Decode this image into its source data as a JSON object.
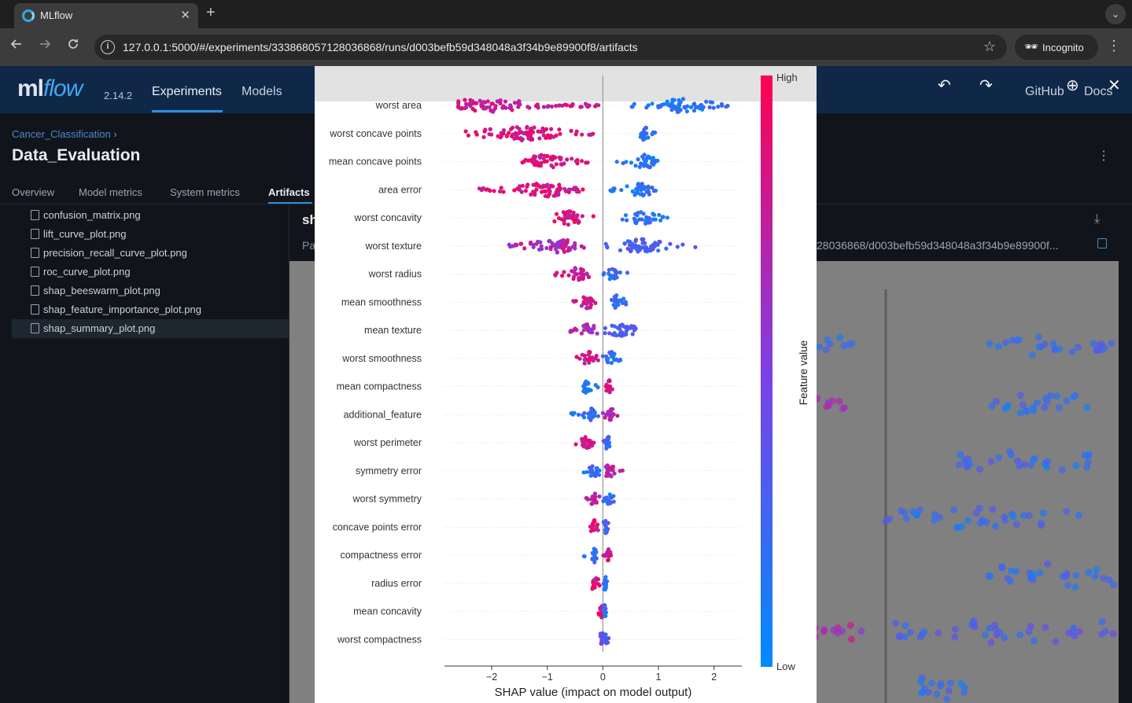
{
  "browser": {
    "tab_title": "MLflow",
    "tab_close": "✕",
    "new_tab": "+",
    "tab_menu": "⌄",
    "url": "127.0.0.1:5000/#/experiments/333868057128036868/runs/d003befb59d348048a3f34b9e89900f8/artifacts",
    "incognito_label": "Incognito",
    "icons": {
      "back": "arrow-left-icon",
      "forward": "arrow-right-icon",
      "reload": "reload-icon",
      "info": "info-icon",
      "star": "star-icon",
      "incognito": "incognito-icon",
      "menu": "kebab-menu-icon"
    }
  },
  "app": {
    "logo_ml": "ml",
    "logo_flow": "flow",
    "version": "2.14.2",
    "nav": [
      "Experiments",
      "Models"
    ],
    "header_right": [
      "GitHub",
      "Docs"
    ],
    "breadcrumb": "Cancer_Classification",
    "breadcrumb_sep": "›",
    "run_title": "Data_Evaluation",
    "tabs": [
      "Overview",
      "Model metrics",
      "System metrics",
      "Artifacts"
    ],
    "files": [
      "confusion_matrix.png",
      "lift_curve_plot.png",
      "precision_recall_curve_plot.png",
      "roc_curve_plot.png",
      "shap_beeswarm_plot.png",
      "shap_feature_importance_plot.png",
      "shap_summary_plot.png"
    ],
    "selected_file": "shap_summary_plot.png",
    "preview_title_fragment": "sh",
    "path_label_fragment": "Pa",
    "path_value_fragment": "28036868/d003befb59d348048a3f34b9e89900f...",
    "viewer_labels": {
      "undo": "↶",
      "redo": "↷",
      "zoom_in": "⊕",
      "close": "✕"
    },
    "accent": "#2a8fe0",
    "header_bg": "#0f2848"
  },
  "chart_data": {
    "type": "scatter",
    "subtype": "shap-beeswarm",
    "xlabel": "SHAP value (impact on model output)",
    "xticks": [
      "−2",
      "−1",
      "0",
      "1",
      "2"
    ],
    "xlim": [
      -2.85,
      2.5
    ],
    "colorbar": {
      "label": "Feature value",
      "high": "High",
      "low": "Low",
      "colors": [
        "#008bfb",
        "#ff0052"
      ]
    },
    "features": [
      "worst area",
      "worst concave points",
      "mean concave points",
      "area error",
      "worst concavity",
      "worst texture",
      "worst radius",
      "mean smoothness",
      "mean texture",
      "worst smoothness",
      "mean compactness",
      "additional_feature",
      "worst perimeter",
      "symmetry error",
      "worst symmetry",
      "concave points error",
      "compactness error",
      "radius error",
      "mean concavity",
      "worst compactness"
    ],
    "ranges": [
      {
        "neg": [
          -2.6,
          -0.05
        ],
        "pos": [
          0.5,
          2.25
        ],
        "negc": [
          -2.1,
          0.8
        ],
        "posc": [
          1.4,
          0.15
        ]
      },
      {
        "neg": [
          -2.5,
          -0.15
        ],
        "pos": [
          0.65,
          0.95
        ],
        "negc": [
          -1.45,
          0.85
        ],
        "posc": [
          0.75,
          0.2
        ]
      },
      {
        "neg": [
          -1.6,
          -0.25
        ],
        "pos": [
          0.25,
          1.0
        ],
        "negc": [
          -1.05,
          0.85
        ],
        "posc": [
          0.75,
          0.15
        ]
      },
      {
        "neg": [
          -2.35,
          -0.3
        ],
        "pos": [
          0.0,
          0.95
        ],
        "negc": [
          -1.0,
          0.85
        ],
        "posc": [
          0.7,
          0.15
        ]
      },
      {
        "neg": [
          -0.95,
          -0.1
        ],
        "pos": [
          0.35,
          1.2
        ],
        "negc": [
          -0.6,
          0.85
        ],
        "posc": [
          0.7,
          0.2
        ]
      },
      {
        "neg": [
          -1.75,
          -0.1
        ],
        "pos": [
          0.0,
          1.7
        ],
        "negc": [
          -0.8,
          0.7
        ],
        "posc": [
          0.7,
          0.3
        ]
      },
      {
        "neg": [
          -0.9,
          -0.25
        ],
        "pos": [
          0.0,
          0.45
        ],
        "negc": [
          -0.45,
          0.8
        ],
        "posc": [
          0.2,
          0.2
        ]
      },
      {
        "neg": [
          -0.6,
          -0.1
        ],
        "pos": [
          0.1,
          0.5
        ],
        "negc": [
          -0.25,
          0.8
        ],
        "posc": [
          0.25,
          0.2
        ]
      },
      {
        "neg": [
          -0.6,
          -0.05
        ],
        "pos": [
          0.0,
          0.9
        ],
        "negc": [
          -0.25,
          0.7
        ],
        "posc": [
          0.3,
          0.3
        ]
      },
      {
        "neg": [
          -0.5,
          -0.05
        ],
        "pos": [
          0.0,
          0.35
        ],
        "negc": [
          -0.25,
          0.8
        ],
        "posc": [
          0.15,
          0.2
        ]
      },
      {
        "neg": [
          -0.35,
          -0.05
        ],
        "pos": [
          0.0,
          0.2
        ],
        "negc": [
          -0.3,
          0.1
        ],
        "posc": [
          0.1,
          0.8
        ]
      },
      {
        "neg": [
          -0.6,
          -0.05
        ],
        "pos": [
          0.0,
          0.3
        ],
        "negc": [
          -0.2,
          0.2
        ],
        "posc": [
          0.15,
          0.7
        ]
      },
      {
        "neg": [
          -0.5,
          -0.1
        ],
        "pos": [
          0.0,
          0.15
        ],
        "negc": [
          -0.3,
          0.85
        ],
        "posc": [
          0.08,
          0.25
        ]
      },
      {
        "neg": [
          -0.45,
          -0.05
        ],
        "pos": [
          0.0,
          0.4
        ],
        "negc": [
          -0.15,
          0.2
        ],
        "posc": [
          0.1,
          0.7
        ]
      },
      {
        "neg": [
          -0.3,
          -0.05
        ],
        "pos": [
          0.0,
          0.2
        ],
        "negc": [
          -0.15,
          0.8
        ],
        "posc": [
          0.12,
          0.2
        ]
      },
      {
        "neg": [
          -0.25,
          -0.05
        ],
        "pos": [
          0.0,
          0.1
        ],
        "negc": [
          -0.15,
          0.85
        ],
        "posc": [
          0.05,
          0.25
        ]
      },
      {
        "neg": [
          -0.35,
          -0.05
        ],
        "pos": [
          0.0,
          0.18
        ],
        "negc": [
          -0.15,
          0.2
        ],
        "posc": [
          0.1,
          0.8
        ]
      },
      {
        "neg": [
          -0.3,
          -0.05
        ],
        "pos": [
          0.0,
          0.08
        ],
        "negc": [
          -0.15,
          0.85
        ],
        "posc": [
          0.05,
          0.2
        ]
      },
      {
        "neg": [
          -0.08,
          0.0
        ],
        "pos": [
          0.0,
          0.06
        ],
        "negc": [
          -0.03,
          0.85
        ],
        "posc": [
          0.03,
          0.2
        ]
      },
      {
        "neg": [
          -0.05,
          0.0
        ],
        "pos": [
          0.0,
          0.12
        ],
        "negc": [
          -0.02,
          0.5
        ],
        "posc": [
          0.05,
          0.3
        ]
      }
    ]
  }
}
